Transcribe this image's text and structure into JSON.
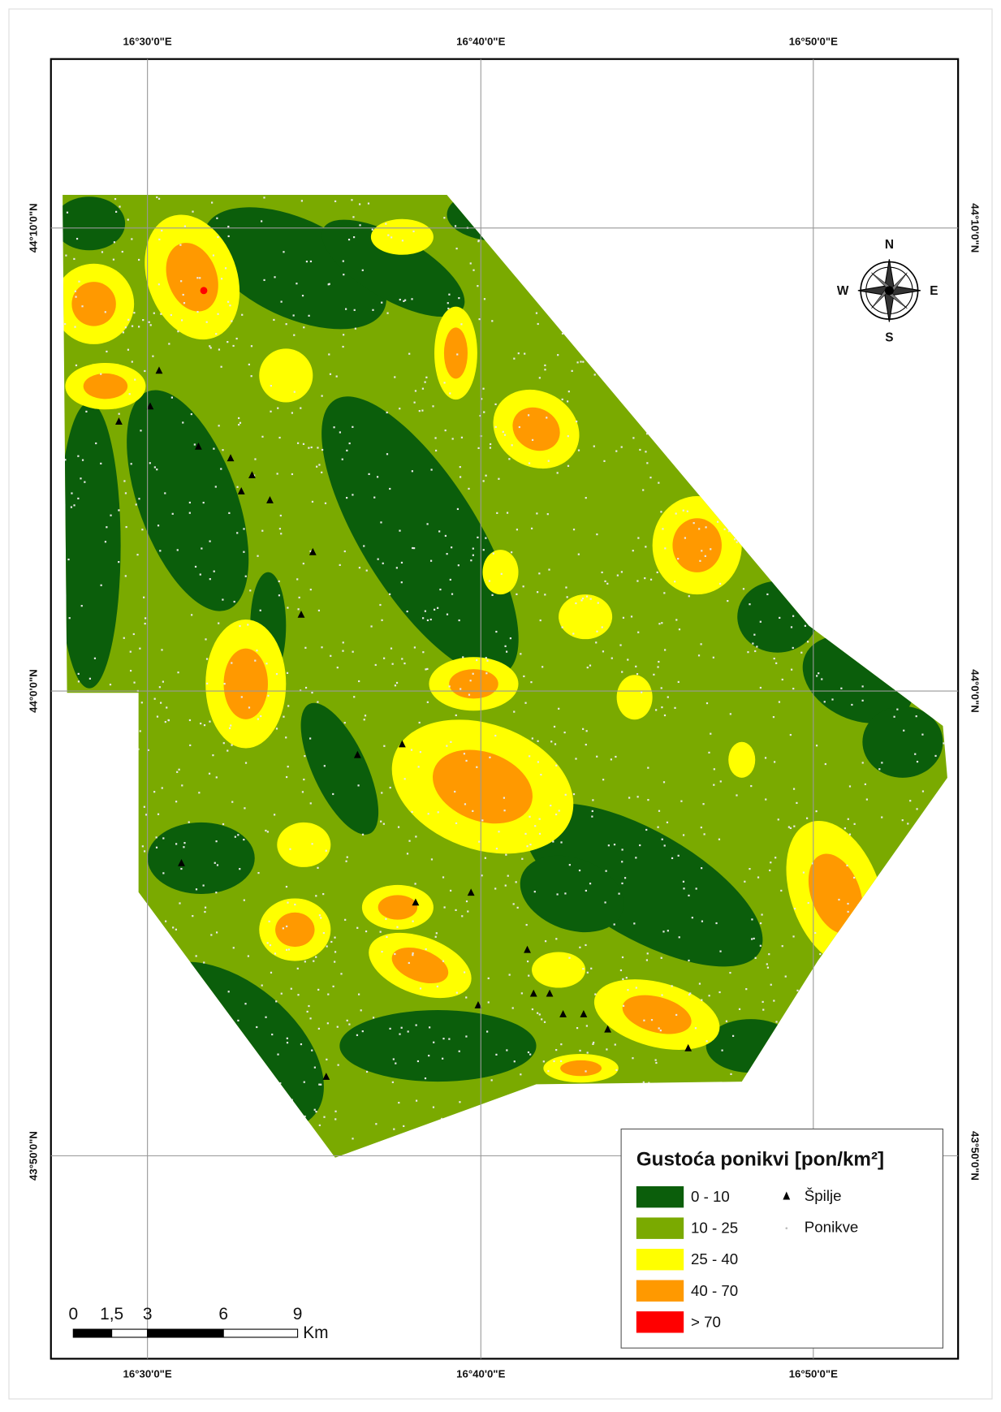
{
  "map": {
    "graticule": {
      "lon_labels": [
        "16°30'0\"E",
        "16°40'0\"E",
        "16°50'0\"E"
      ],
      "lat_labels": [
        "44°10'0\"N",
        "44°0'0\"N",
        "43°50'0\"N"
      ]
    },
    "compass": {
      "n": "N",
      "s": "S",
      "e": "E",
      "w": "W"
    },
    "legend": {
      "title": "Gustoća ponikvi [pon/km²]",
      "classes": [
        {
          "label": "0 - 10",
          "color": "#0b5e0b"
        },
        {
          "label": "10 - 25",
          "color": "#7aaa00"
        },
        {
          "label": "25 - 40",
          "color": "#ffff00"
        },
        {
          "label": "40 - 70",
          "color": "#ff9900"
        },
        {
          "label": "> 70",
          "color": "#ff0000"
        }
      ],
      "points": [
        {
          "label": "Špilje"
        },
        {
          "label": "Ponikve"
        }
      ]
    },
    "scale_bar": {
      "labels": [
        "0",
        "1,5",
        "3",
        "6",
        "9"
      ],
      "unit": "Km"
    }
  }
}
